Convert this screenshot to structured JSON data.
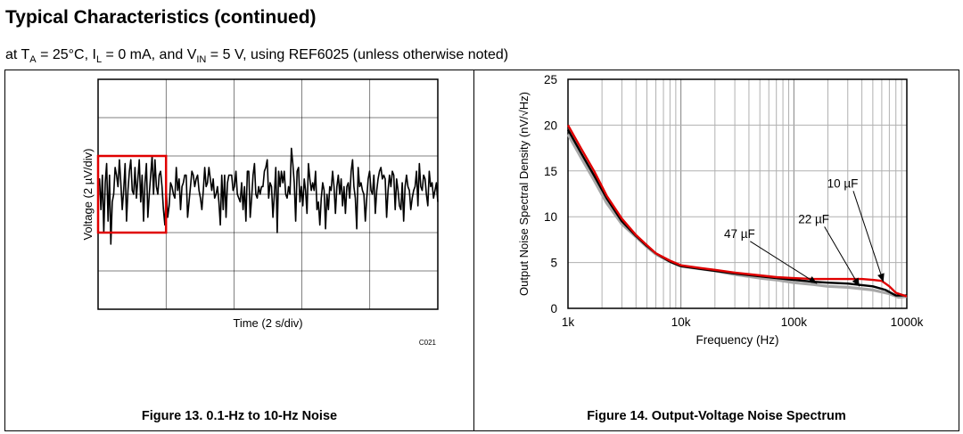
{
  "header": {
    "title": "Typical Characteristics (continued)",
    "subtitle_prefix": "at T",
    "subtitle_ta_sub": "A",
    "subtitle_mid1": " = 25°C, I",
    "subtitle_il_sub": "L",
    "subtitle_mid2": " = 0 mA, and V",
    "subtitle_vin_sub": "IN",
    "subtitle_suffix": " = 5 V, using REF6025 (unless otherwise noted)"
  },
  "figures": [
    {
      "caption": "Figure 13. 0.1-Hz to 10-Hz Noise",
      "code": "C021"
    },
    {
      "caption": "Figure 14. Output-Voltage Noise Spectrum"
    }
  ],
  "chart_data": [
    {
      "type": "line",
      "xlabel": "Time (2 s/div)",
      "ylabel": "Voltage  (2 µV/div)",
      "x_divisions": 5,
      "y_divisions": 6,
      "grid": true,
      "colors": {
        "trace": "#000000",
        "highlight_box": "#e00000"
      },
      "highlight_box": {
        "x": [
          0,
          1
        ],
        "y": [
          2,
          4
        ]
      },
      "series": [
        {
          "values": [
            3.2,
            3.4,
            2.6,
            3.5,
            2.0,
            3.3,
            3.8,
            2.3,
            3.5,
            1.7,
            2.8,
            3.0,
            3.7,
            3.5,
            3.2,
            3.9,
            3.3,
            2.6,
            3.1,
            3.8,
            2.3,
            3.1,
            3.6,
            3.9,
            3.1,
            3.0,
            3.7,
            2.9,
            3.4,
            3.9,
            2.8,
            3.5,
            2.3,
            3.3,
            3.8,
            2.4,
            3.0,
            3.5,
            4.0,
            3.0,
            3.9,
            3.2,
            3.0,
            3.5,
            3.6,
            3.2,
            2.6,
            2.2,
            3.1,
            2.4,
            2.7,
            3.3,
            3.2,
            3.0,
            2.9,
            3.7,
            3.1,
            3.4,
            2.6,
            3.2,
            3.3,
            3.5,
            3.5,
            2.4,
            2.8,
            3.2,
            3.6,
            3.5,
            3.2,
            3.4,
            3.5,
            3.1,
            2.9,
            2.6,
            3.1,
            3.7,
            3.2,
            3.3,
            3.7,
            3.4,
            3.1,
            3.4,
            2.9,
            3.0,
            3.2,
            2.8,
            2.2,
            3.5,
            2.6,
            3.5,
            2.4,
            3.3,
            3.5,
            3.5,
            3.5,
            3.1,
            3.2,
            3.6,
            3.0,
            2.9,
            2.8,
            3.3,
            2.6,
            3.2,
            2.3,
            3.6,
            3.6,
            2.4,
            2.9,
            3.5,
            3.8,
            3.0,
            2.9,
            3.2,
            3.0,
            3.2,
            3.2,
            3.6,
            3.7,
            3.9,
            2.9,
            3.3,
            3.2,
            2.4,
            3.0,
            3.7,
            2.0,
            3.6,
            3.2,
            3.6,
            3.3,
            3.6,
            3.0,
            2.9,
            3.2,
            3.0,
            4.2,
            3.8,
            3.3,
            2.3,
            3.6,
            3.7,
            2.8,
            3.2,
            2.7,
            3.4,
            3.1,
            2.5,
            3.8,
            3.4,
            3.1,
            3.3,
            3.1,
            3.6,
            2.6,
            2.8,
            2.2,
            2.9,
            3.3,
            3.1,
            2.1,
            3.0,
            2.6,
            3.2,
            3.1,
            3.6,
            3.2,
            2.5,
            3.2,
            3.5,
            3.0,
            3.4,
            2.7,
            3.2,
            2.5,
            3.2,
            3.3,
            2.9,
            3.6,
            3.9,
            3.2,
            2.9,
            2.1,
            3.7,
            3.2,
            3.3,
            3.1,
            3.0,
            2.3,
            2.9,
            3.4,
            3.6,
            3.1,
            3.0,
            3.5,
            2.5,
            3.1,
            3.4,
            3.6,
            3.7,
            3.4,
            3.5,
            3.4,
            2.4,
            3.1,
            3.5,
            3.2,
            3.6,
            3.5,
            2.6,
            3.4,
            3.1,
            2.7,
            2.6,
            3.3,
            2.3,
            3.2,
            3.5,
            3.2,
            3.1,
            2.6,
            2.9,
            3.1,
            3.2,
            3.6,
            2.7,
            3.8,
            3.2,
            3.1,
            3.5,
            3.4,
            3.0,
            2.7,
            3.6,
            3.2,
            3.3,
            2.9,
            3.1,
            3.3,
            2.8
          ]
        }
      ]
    },
    {
      "type": "line",
      "xlabel": "Frequency (Hz)",
      "ylabel": "Output Noise Spectral Density (nV/√Hz)",
      "x_scale": "log",
      "xlim": [
        1000,
        1000000
      ],
      "ylim": [
        0,
        25
      ],
      "x_ticks": [
        1000,
        10000,
        100000,
        1000000
      ],
      "x_tick_labels": [
        "1k",
        "10k",
        "100k",
        "1000k"
      ],
      "y_ticks": [
        0,
        5,
        10,
        15,
        20,
        25
      ],
      "y_tick_labels": [
        "0",
        "5",
        "10",
        "15",
        "20",
        "25"
      ],
      "grid": true,
      "colors": {
        "grid": "#b0b0b0"
      },
      "series": [
        {
          "name": "47 µF",
          "color": "#a8a8a8",
          "x": [
            1000,
            1300,
            1700,
            2200,
            3000,
            4000,
            5000,
            6000,
            8000,
            10000,
            15000,
            20000,
            30000,
            50000,
            70000,
            100000,
            150000,
            200000,
            300000,
            500000,
            700000,
            850000,
            1000000
          ],
          "y": [
            19.0,
            16.5,
            14.0,
            11.5,
            9.2,
            7.8,
            6.7,
            5.9,
            5.1,
            4.6,
            4.3,
            4.1,
            3.7,
            3.3,
            3.1,
            2.8,
            2.6,
            2.4,
            2.3,
            2.0,
            1.6,
            1.2,
            1.3
          ]
        },
        {
          "name": "22 µF",
          "color": "#000000",
          "x": [
            1000,
            1300,
            1700,
            2200,
            3000,
            4000,
            5000,
            6000,
            8000,
            10000,
            15000,
            20000,
            30000,
            50000,
            70000,
            100000,
            150000,
            200000,
            300000,
            500000,
            650000,
            800000,
            1000000
          ],
          "y": [
            19.5,
            17.0,
            14.5,
            12.0,
            9.5,
            7.9,
            6.8,
            6.0,
            5.1,
            4.6,
            4.3,
            4.1,
            3.8,
            3.5,
            3.3,
            3.1,
            2.9,
            2.8,
            2.7,
            2.4,
            2.0,
            1.4,
            1.4
          ]
        },
        {
          "name": "10 µF",
          "color": "#e00000",
          "x": [
            1000,
            1300,
            1700,
            2200,
            3000,
            4000,
            5000,
            6000,
            8000,
            10000,
            15000,
            20000,
            30000,
            50000,
            70000,
            100000,
            150000,
            200000,
            300000,
            400000,
            500000,
            600000,
            700000,
            800000,
            1000000
          ],
          "y": [
            20.0,
            17.5,
            15.0,
            12.3,
            9.8,
            8.0,
            6.9,
            6.0,
            5.2,
            4.7,
            4.4,
            4.2,
            3.9,
            3.6,
            3.4,
            3.3,
            3.2,
            3.2,
            3.2,
            3.2,
            3.1,
            3.0,
            2.4,
            1.7,
            1.3
          ]
        }
      ],
      "annotations": [
        {
          "text": "10 µF",
          "label_xy": [
            270000,
            13.2
          ],
          "arrow_to": [
            620000,
            2.9
          ]
        },
        {
          "text": "22 µF",
          "label_xy": [
            150000,
            9.3
          ],
          "arrow_to": [
            380000,
            2.4
          ]
        },
        {
          "text": "47 µF",
          "label_xy": [
            33000,
            7.7
          ],
          "arrow_to": [
            160000,
            2.7
          ]
        }
      ]
    }
  ]
}
